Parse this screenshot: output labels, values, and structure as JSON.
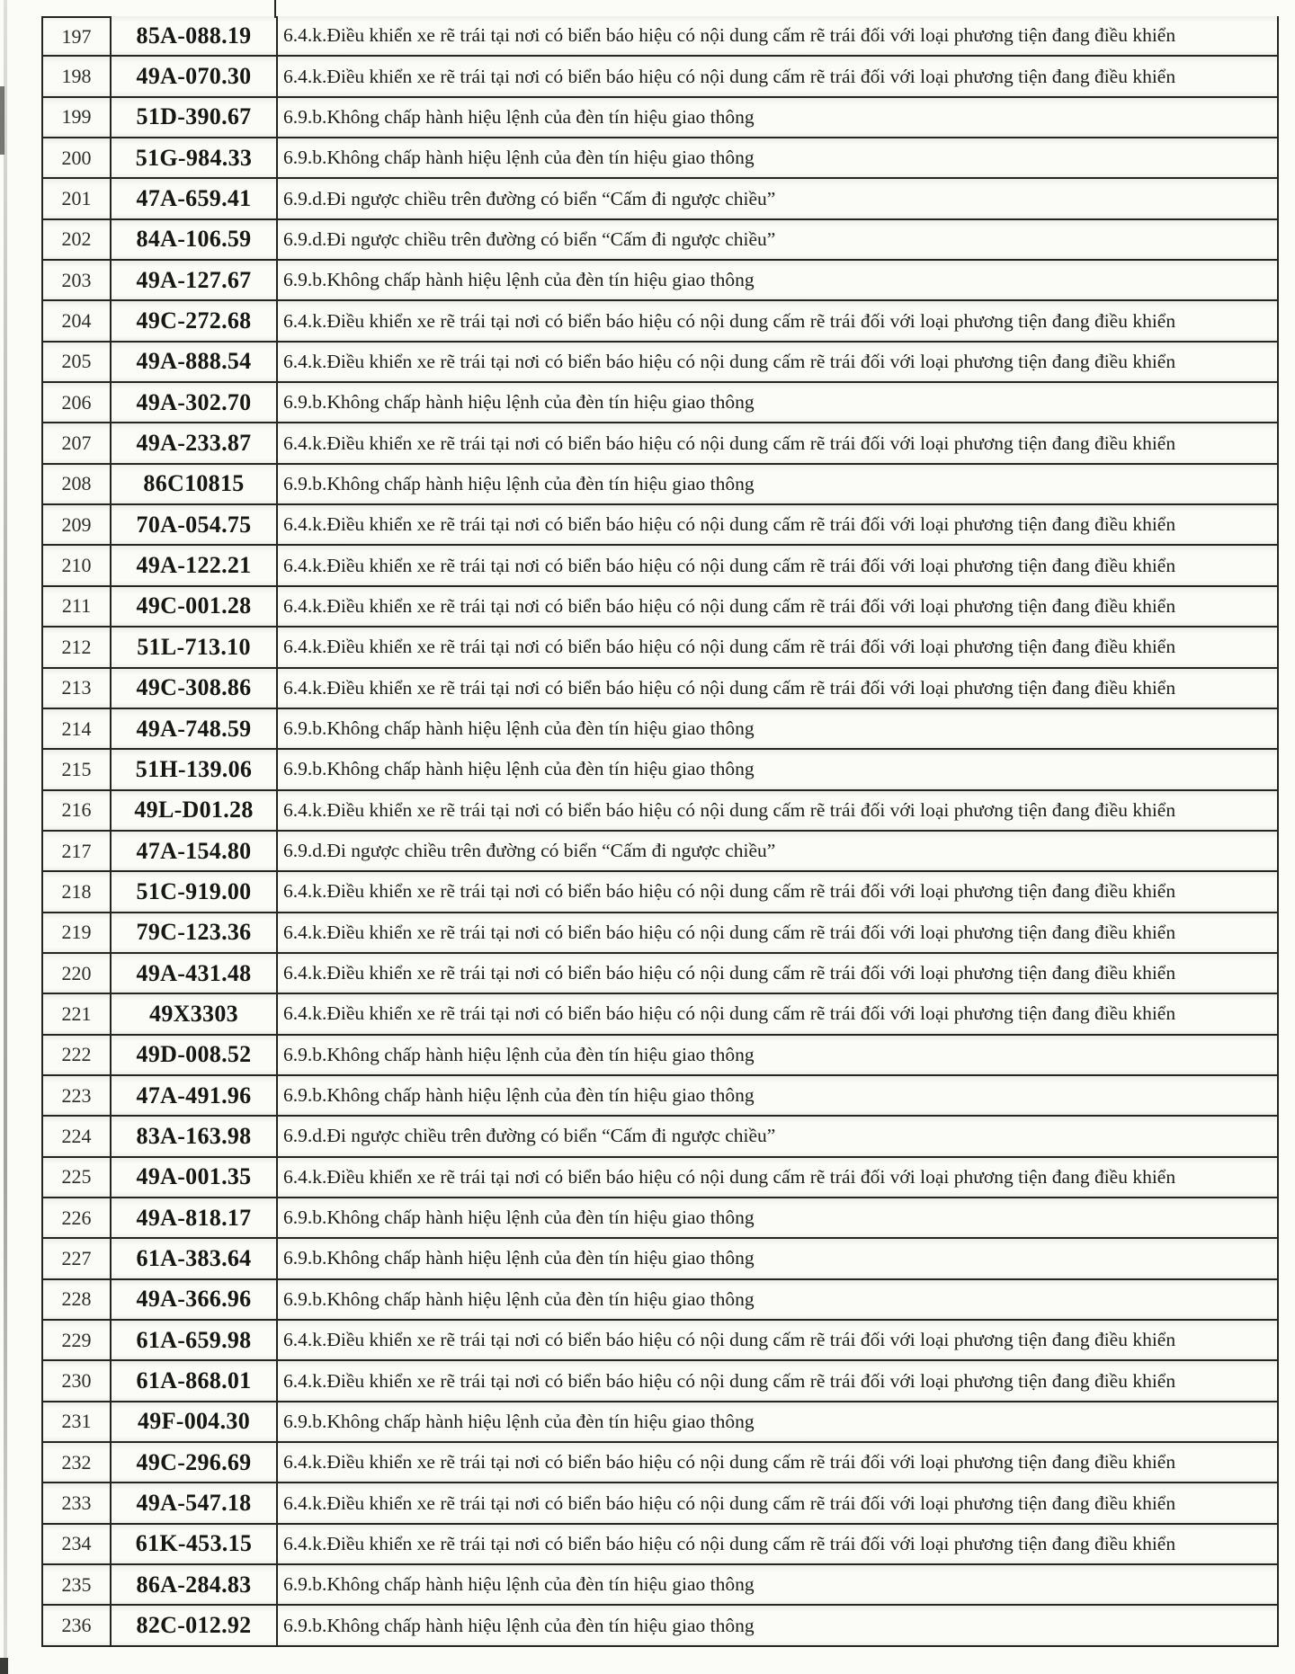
{
  "document": {
    "kind": "scanned traffic-violation list page",
    "paper_color": "#fbfbf8",
    "ink_color": "#242422"
  },
  "table": {
    "rows": [
      {
        "no": "197",
        "plate": "85A-088.19",
        "violation": "6.4.k.Điều khiển xe rẽ trái tại nơi có biển báo hiệu có nội dung cấm rẽ trái đối với loại phương tiện đang điều khiển"
      },
      {
        "no": "198",
        "plate": "49A-070.30",
        "violation": "6.4.k.Điều khiển xe rẽ trái tại nơi có biển báo hiệu có nội dung cấm rẽ trái đối với loại phương tiện đang điều khiển"
      },
      {
        "no": "199",
        "plate": "51D-390.67",
        "violation": "6.9.b.Không chấp hành hiệu lệnh của đèn tín hiệu giao thông"
      },
      {
        "no": "200",
        "plate": "51G-984.33",
        "violation": "6.9.b.Không chấp hành hiệu lệnh của đèn tín hiệu giao thông"
      },
      {
        "no": "201",
        "plate": "47A-659.41",
        "violation": "6.9.d.Đi ngược chiều trên đường có biển “Cấm đi ngược chiều”"
      },
      {
        "no": "202",
        "plate": "84A-106.59",
        "violation": "6.9.d.Đi ngược chiều trên đường có biển “Cấm đi ngược chiều”"
      },
      {
        "no": "203",
        "plate": "49A-127.67",
        "violation": "6.9.b.Không chấp hành hiệu lệnh của đèn tín hiệu giao thông"
      },
      {
        "no": "204",
        "plate": "49C-272.68",
        "violation": "6.4.k.Điều khiển xe rẽ trái tại nơi có biển báo hiệu có nội dung cấm rẽ trái đối với loại phương tiện đang điều khiển"
      },
      {
        "no": "205",
        "plate": "49A-888.54",
        "violation": "6.4.k.Điều khiển xe rẽ trái tại nơi có biển báo hiệu có nội dung cấm rẽ trái đối với loại phương tiện đang điều khiển"
      },
      {
        "no": "206",
        "plate": "49A-302.70",
        "violation": "6.9.b.Không chấp hành hiệu lệnh của đèn tín hiệu giao thông"
      },
      {
        "no": "207",
        "plate": "49A-233.87",
        "violation": "6.4.k.Điều khiển xe rẽ trái tại nơi có biển báo hiệu có nội dung cấm rẽ trái đối với loại phương tiện đang điều khiển"
      },
      {
        "no": "208",
        "plate": "86C10815",
        "violation": "6.9.b.Không chấp hành hiệu lệnh của đèn tín hiệu giao thông"
      },
      {
        "no": "209",
        "plate": "70A-054.75",
        "violation": "6.4.k.Điều khiển xe rẽ trái tại nơi có biển báo hiệu có nội dung cấm rẽ trái đối với loại phương tiện đang điều khiển"
      },
      {
        "no": "210",
        "plate": "49A-122.21",
        "violation": "6.4.k.Điều khiển xe rẽ trái tại nơi có biển báo hiệu có nội dung cấm rẽ trái đối với loại phương tiện đang điều khiển"
      },
      {
        "no": "211",
        "plate": "49C-001.28",
        "violation": "6.4.k.Điều khiển xe rẽ trái tại nơi có biển báo hiệu có nội dung cấm rẽ trái đối với loại phương tiện đang điều khiển"
      },
      {
        "no": "212",
        "plate": "51L-713.10",
        "violation": "6.4.k.Điều khiển xe rẽ trái tại nơi có biển báo hiệu có nội dung cấm rẽ trái đối với loại phương tiện đang điều khiển"
      },
      {
        "no": "213",
        "plate": "49C-308.86",
        "violation": "6.4.k.Điều khiển xe rẽ trái tại nơi có biển báo hiệu có nội dung cấm rẽ trái đối với loại phương tiện đang điều khiển"
      },
      {
        "no": "214",
        "plate": "49A-748.59",
        "violation": "6.9.b.Không chấp hành hiệu lệnh của đèn tín hiệu giao thông"
      },
      {
        "no": "215",
        "plate": "51H-139.06",
        "violation": "6.9.b.Không chấp hành hiệu lệnh của đèn tín hiệu giao thông"
      },
      {
        "no": "216",
        "plate": "49L-D01.28",
        "violation": "6.4.k.Điều khiển xe rẽ trái tại nơi có biển báo hiệu có nội dung cấm rẽ trái đối với loại phương tiện đang điều khiển"
      },
      {
        "no": "217",
        "plate": "47A-154.80",
        "violation": "6.9.d.Đi ngược chiều trên đường có biển “Cấm đi ngược chiều”"
      },
      {
        "no": "218",
        "plate": "51C-919.00",
        "violation": "6.4.k.Điều khiển xe rẽ trái tại nơi có biển báo hiệu có nội dung cấm rẽ trái đối với loại phương tiện đang điều khiển"
      },
      {
        "no": "219",
        "plate": "79C-123.36",
        "violation": "6.4.k.Điều khiển xe rẽ trái tại nơi có biển báo hiệu có nội dung cấm rẽ trái đối với loại phương tiện đang điều khiển"
      },
      {
        "no": "220",
        "plate": "49A-431.48",
        "violation": "6.4.k.Điều khiển xe rẽ trái tại nơi có biển báo hiệu có nội dung cấm rẽ trái đối với loại phương tiện đang điều khiển"
      },
      {
        "no": "221",
        "plate": "49X3303",
        "violation": "6.4.k.Điều khiển xe rẽ trái tại nơi có biển báo hiệu có nội dung cấm rẽ trái đối với loại phương tiện đang điều khiển"
      },
      {
        "no": "222",
        "plate": "49D-008.52",
        "violation": "6.9.b.Không chấp hành hiệu lệnh của đèn tín hiệu giao thông"
      },
      {
        "no": "223",
        "plate": "47A-491.96",
        "violation": "6.9.b.Không chấp hành hiệu lệnh của đèn tín hiệu giao thông"
      },
      {
        "no": "224",
        "plate": "83A-163.98",
        "violation": "6.9.d.Đi ngược chiều trên đường có biển “Cấm đi ngược chiều”"
      },
      {
        "no": "225",
        "plate": "49A-001.35",
        "violation": "6.4.k.Điều khiển xe rẽ trái tại nơi có biển báo hiệu có nội dung cấm rẽ trái đối với loại phương tiện đang điều khiển"
      },
      {
        "no": "226",
        "plate": "49A-818.17",
        "violation": "6.9.b.Không chấp hành hiệu lệnh của đèn tín hiệu giao thông"
      },
      {
        "no": "227",
        "plate": "61A-383.64",
        "violation": "6.9.b.Không chấp hành hiệu lệnh của đèn tín hiệu giao thông"
      },
      {
        "no": "228",
        "plate": "49A-366.96",
        "violation": "6.9.b.Không chấp hành hiệu lệnh của đèn tín hiệu giao thông"
      },
      {
        "no": "229",
        "plate": "61A-659.98",
        "violation": "6.4.k.Điều khiển xe rẽ trái tại nơi có biển báo hiệu có nội dung cấm rẽ trái đối với loại phương tiện đang điều khiển"
      },
      {
        "no": "230",
        "plate": "61A-868.01",
        "violation": "6.4.k.Điều khiển xe rẽ trái tại nơi có biển báo hiệu có nội dung cấm rẽ trái đối với loại phương tiện đang điều khiển"
      },
      {
        "no": "231",
        "plate": "49F-004.30",
        "violation": "6.9.b.Không chấp hành hiệu lệnh của đèn tín hiệu giao thông"
      },
      {
        "no": "232",
        "plate": "49C-296.69",
        "violation": "6.4.k.Điều khiển xe rẽ trái tại nơi có biển báo hiệu có nội dung cấm rẽ trái đối với loại phương tiện đang điều khiển"
      },
      {
        "no": "233",
        "plate": "49A-547.18",
        "violation": "6.4.k.Điều khiển xe rẽ trái tại nơi có biển báo hiệu có nội dung cấm rẽ trái đối với loại phương tiện đang điều khiển"
      },
      {
        "no": "234",
        "plate": "61K-453.15",
        "violation": "6.4.k.Điều khiển xe rẽ trái tại nơi có biển báo hiệu có nội dung cấm rẽ trái đối với loại phương tiện đang điều khiển"
      },
      {
        "no": "235",
        "plate": "86A-284.83",
        "violation": "6.9.b.Không chấp hành hiệu lệnh của đèn tín hiệu giao thông"
      },
      {
        "no": "236",
        "plate": "82C-012.92",
        "violation": "6.9.b.Không chấp hành hiệu lệnh của đèn tín hiệu giao thông"
      }
    ]
  }
}
